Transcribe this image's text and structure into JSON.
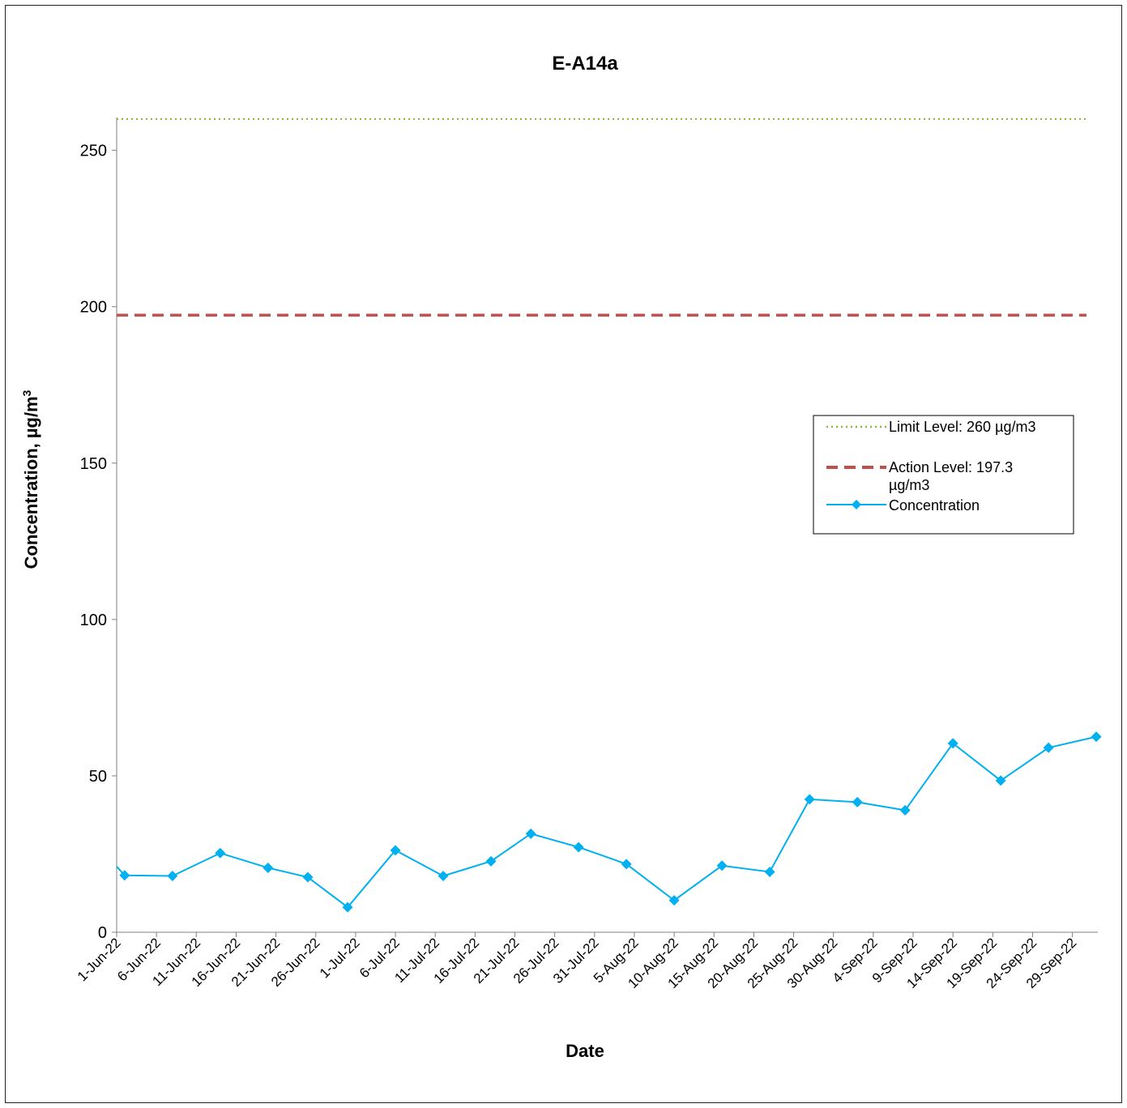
{
  "chart_data": {
    "type": "line",
    "title": "E-A14a",
    "xlabel": "Date",
    "ylabel_main": "Concentration, µg/m",
    "ylabel_sup": "3",
    "ylim": [
      0,
      260
    ],
    "yticks": [
      0,
      50,
      100,
      150,
      200,
      250
    ],
    "xlim": [
      "2022-06-01",
      "2022-10-02"
    ],
    "xtick_labels": [
      "1-Jun-22",
      "6-Jun-22",
      "11-Jun-22",
      "16-Jun-22",
      "21-Jun-22",
      "26-Jun-22",
      "1-Jul-22",
      "6-Jul-22",
      "11-Jul-22",
      "16-Jul-22",
      "21-Jul-22",
      "26-Jul-22",
      "31-Jul-22",
      "5-Aug-22",
      "10-Aug-22",
      "15-Aug-22",
      "20-Aug-22",
      "25-Aug-22",
      "30-Aug-22",
      "4-Sep-22",
      "9-Sep-22",
      "14-Sep-22",
      "19-Sep-22",
      "24-Sep-22",
      "29-Sep-22"
    ],
    "xtick_dates": [
      "2022-06-01",
      "2022-06-06",
      "2022-06-11",
      "2022-06-16",
      "2022-06-21",
      "2022-06-26",
      "2022-07-01",
      "2022-07-06",
      "2022-07-11",
      "2022-07-16",
      "2022-07-21",
      "2022-07-26",
      "2022-07-31",
      "2022-08-05",
      "2022-08-10",
      "2022-08-15",
      "2022-08-20",
      "2022-08-25",
      "2022-08-30",
      "2022-09-04",
      "2022-09-09",
      "2022-09-14",
      "2022-09-19",
      "2022-09-24",
      "2022-09-29"
    ],
    "grid": false,
    "legend_position": "right",
    "series": [
      {
        "name": "Limit Level: 260 µg/m3",
        "style": "dotted",
        "color": "#8DB53C",
        "x": [
          "2022-06-01",
          "2022-10-02"
        ],
        "values": [
          260,
          260
        ]
      },
      {
        "name": "Action Level: 197.3 µg/m3",
        "style": "dashed",
        "color": "#C0504D",
        "x": [
          "2022-06-01",
          "2022-10-02"
        ],
        "values": [
          197.3,
          197.3
        ]
      },
      {
        "name": "Concentration",
        "style": "line-marker",
        "marker": "diamond",
        "color": "#00B0F0",
        "x": [
          "2022-06-02",
          "2022-06-08",
          "2022-06-14",
          "2022-06-20",
          "2022-06-25",
          "2022-06-30",
          "2022-07-06",
          "2022-07-12",
          "2022-07-18",
          "2022-07-23",
          "2022-07-29",
          "2022-08-04",
          "2022-08-10",
          "2022-08-16",
          "2022-08-22",
          "2022-08-27",
          "2022-09-02",
          "2022-09-08",
          "2022-09-14",
          "2022-09-20",
          "2022-09-26",
          "2022-10-02"
        ],
        "values": [
          18.2,
          18,
          25.3,
          20.6,
          17.6,
          8,
          26.2,
          18,
          22.7,
          31.5,
          27.2,
          21.8,
          10.2,
          21.3,
          19.3,
          42.5,
          41.6,
          39,
          60.4,
          48.5,
          59,
          62.5
        ],
        "lead_in": {
          "x": "2022-06-01",
          "value": 21
        }
      }
    ]
  }
}
